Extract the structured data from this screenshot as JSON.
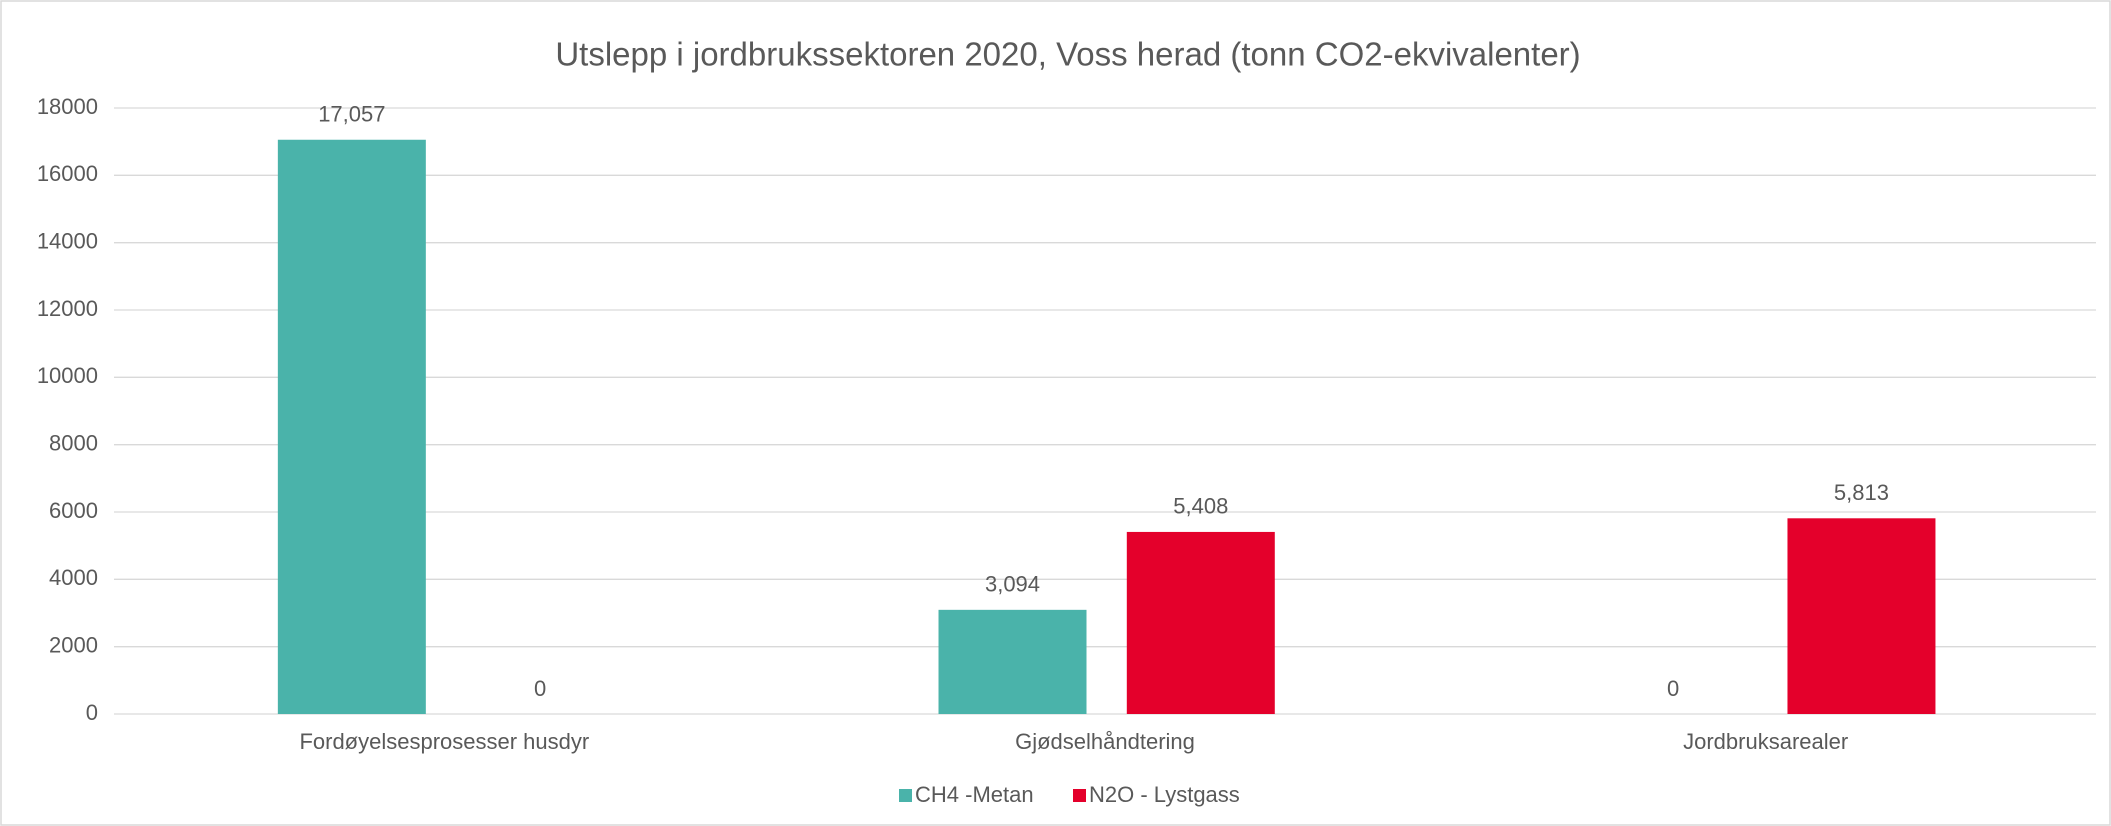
{
  "chart_data": {
    "type": "bar",
    "title": "Utslepp i jordbrukssektoren 2020, Voss herad (tonn CO2-ekvivalenter)",
    "categories": [
      "Fordøyelsesprosesser husdyr",
      "Gjødselhåndtering",
      "Jordbruksarealer"
    ],
    "series": [
      {
        "name": "CH4 -Metan",
        "color": "#4ab3aa",
        "values": [
          17057,
          3094,
          0
        ],
        "value_labels": [
          "17,057",
          "3,094",
          "0"
        ]
      },
      {
        "name": "N2O - Lystgass",
        "color": "#e4002b",
        "values": [
          0,
          5408,
          5813
        ],
        "value_labels": [
          "0",
          "5,408",
          "5,813"
        ]
      }
    ],
    "ylim": [
      0,
      18000
    ],
    "yticks": [
      0,
      2000,
      4000,
      6000,
      8000,
      10000,
      12000,
      14000,
      16000,
      18000
    ],
    "grid": true,
    "legend": "bottom"
  }
}
